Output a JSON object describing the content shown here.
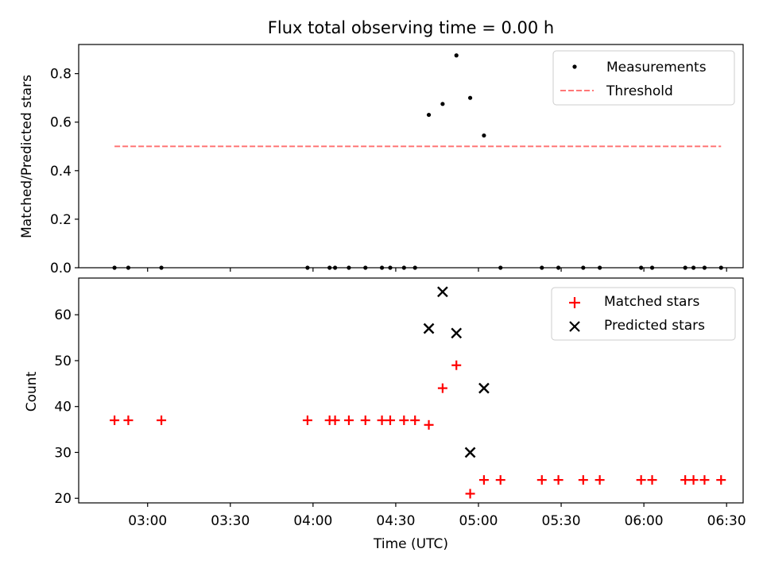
{
  "figure": {
    "title": "Flux total observing time = 0.00 h"
  },
  "chart_data": [
    {
      "type": "scatter",
      "panel": "top",
      "ylabel": "Matched/Predicted stars",
      "ylim": [
        0,
        0.92
      ],
      "yticks": [
        0.0,
        0.2,
        0.4,
        0.6,
        0.8
      ],
      "ytick_labels": [
        "0.0",
        "0.2",
        "0.4",
        "0.6",
        "0.8"
      ],
      "xlim": [
        "02:35",
        "06:36"
      ],
      "legend_position": "top-right",
      "grid": false,
      "series": [
        {
          "name": "Measurements",
          "marker": "dot",
          "color": "#000000",
          "points": [
            [
              "02:48",
              0
            ],
            [
              "02:53",
              0
            ],
            [
              "03:05",
              0
            ],
            [
              "03:58",
              0
            ],
            [
              "04:06",
              0
            ],
            [
              "04:08",
              0
            ],
            [
              "04:13",
              0
            ],
            [
              "04:19",
              0
            ],
            [
              "04:25",
              0
            ],
            [
              "04:28",
              0
            ],
            [
              "04:33",
              0
            ],
            [
              "04:37",
              0
            ],
            [
              "04:42",
              0.63
            ],
            [
              "04:47",
              0.675
            ],
            [
              "04:52",
              0.875
            ],
            [
              "04:57",
              0.7
            ],
            [
              "05:02",
              0.545
            ],
            [
              "05:08",
              0
            ],
            [
              "05:23",
              0
            ],
            [
              "05:29",
              0
            ],
            [
              "05:38",
              0
            ],
            [
              "05:44",
              0
            ],
            [
              "05:59",
              0
            ],
            [
              "06:03",
              0
            ],
            [
              "06:15",
              0
            ],
            [
              "06:18",
              0
            ],
            [
              "06:22",
              0
            ],
            [
              "06:28",
              0
            ]
          ]
        },
        {
          "name": "Threshold",
          "marker": "dashed-line",
          "color": "#ff7777",
          "points": [
            [
              "02:48",
              0.5
            ],
            [
              "06:28",
              0.5
            ]
          ]
        }
      ]
    },
    {
      "type": "scatter",
      "panel": "bottom",
      "xlabel": "Time (UTC)",
      "ylabel": "Count",
      "ylim": [
        19,
        68
      ],
      "yticks": [
        20,
        30,
        40,
        50,
        60
      ],
      "ytick_labels": [
        "20",
        "30",
        "40",
        "50",
        "60"
      ],
      "xlim": [
        "02:35",
        "06:36"
      ],
      "xticks": [
        "03:00",
        "03:30",
        "04:00",
        "04:30",
        "05:00",
        "05:30",
        "06:00",
        "06:30"
      ],
      "xtick_labels": [
        "03:00",
        "03:30",
        "04:00",
        "04:30",
        "05:00",
        "05:30",
        "06:00",
        "06:30"
      ],
      "legend_position": "top-right",
      "grid": false,
      "series": [
        {
          "name": "Matched stars",
          "marker": "plus",
          "color": "#ff0000",
          "points": [
            [
              "02:48",
              37
            ],
            [
              "02:53",
              37
            ],
            [
              "03:05",
              37
            ],
            [
              "03:58",
              37
            ],
            [
              "04:06",
              37
            ],
            [
              "04:08",
              37
            ],
            [
              "04:13",
              37
            ],
            [
              "04:19",
              37
            ],
            [
              "04:25",
              37
            ],
            [
              "04:28",
              37
            ],
            [
              "04:33",
              37
            ],
            [
              "04:37",
              37
            ],
            [
              "04:42",
              36
            ],
            [
              "04:47",
              44
            ],
            [
              "04:52",
              49
            ],
            [
              "04:57",
              21
            ],
            [
              "05:02",
              24
            ],
            [
              "05:08",
              24
            ],
            [
              "05:23",
              24
            ],
            [
              "05:29",
              24
            ],
            [
              "05:38",
              24
            ],
            [
              "05:44",
              24
            ],
            [
              "05:59",
              24
            ],
            [
              "06:03",
              24
            ],
            [
              "06:15",
              24
            ],
            [
              "06:18",
              24
            ],
            [
              "06:22",
              24
            ],
            [
              "06:28",
              24
            ]
          ]
        },
        {
          "name": "Predicted stars",
          "marker": "x",
          "color": "#000000",
          "points": [
            [
              "04:42",
              57
            ],
            [
              "04:47",
              65
            ],
            [
              "04:52",
              56
            ],
            [
              "04:57",
              30
            ],
            [
              "05:02",
              44
            ]
          ]
        }
      ]
    }
  ]
}
